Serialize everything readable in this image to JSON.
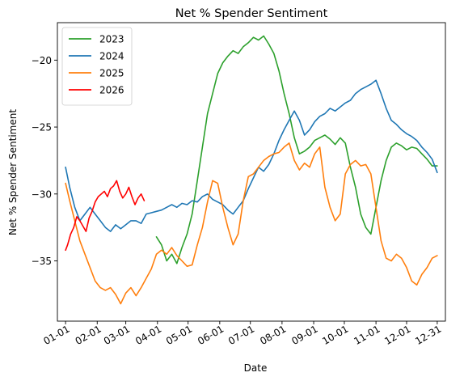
{
  "chart_data": {
    "type": "line",
    "title": "Net % Spender Sentiment",
    "xlabel": "Date",
    "ylabel": "Net % Spender Sentiment",
    "x_tick_labels": [
      "01-01",
      "02-01",
      "03-01",
      "04-01",
      "05-01",
      "06-01",
      "07-01",
      "08-01",
      "09-01",
      "10-01",
      "11-01",
      "12-01",
      "12-31"
    ],
    "x_tick_days": [
      1,
      32,
      60,
      91,
      121,
      152,
      182,
      213,
      244,
      274,
      305,
      335,
      365
    ],
    "xlim": [
      -7,
      373
    ],
    "ylim": [
      -39.5,
      -17.2
    ],
    "y_ticks": [
      -35,
      -30,
      -25,
      -20
    ],
    "y_tick_labels": [
      "−35",
      "−30",
      "−25",
      "−20"
    ],
    "grid": false,
    "legend_position": "top-left",
    "series": [
      {
        "name": "2023",
        "color": "#2ca02c",
        "x": [
          90,
          95,
          100,
          105,
          110,
          115,
          120,
          125,
          130,
          135,
          140,
          145,
          150,
          155,
          160,
          165,
          170,
          175,
          180,
          185,
          190,
          195,
          200,
          205,
          210,
          215,
          220,
          225,
          230,
          235,
          240,
          245,
          250,
          255,
          260,
          265,
          270,
          275,
          280,
          285,
          290,
          295,
          300,
          305,
          310,
          315,
          320,
          325,
          330,
          335,
          340,
          345,
          350,
          355,
          360,
          365
        ],
        "y": [
          -33.2,
          -33.8,
          -35.0,
          -34.5,
          -35.2,
          -34.0,
          -33.0,
          -31.5,
          -29.0,
          -26.5,
          -24.0,
          -22.5,
          -21.0,
          -20.2,
          -19.7,
          -19.3,
          -19.5,
          -19.0,
          -18.7,
          -18.3,
          -18.5,
          -18.2,
          -18.8,
          -19.5,
          -20.8,
          -22.5,
          -24.0,
          -25.8,
          -27.0,
          -26.8,
          -26.5,
          -26.0,
          -25.8,
          -25.6,
          -25.9,
          -26.3,
          -25.8,
          -26.2,
          -28.0,
          -29.5,
          -31.5,
          -32.5,
          -33.0,
          -31.0,
          -29.0,
          -27.5,
          -26.5,
          -26.2,
          -26.4,
          -26.7,
          -26.5,
          -26.6,
          -27.0,
          -27.4,
          -27.9,
          -27.9
        ]
      },
      {
        "name": "2024",
        "color": "#1f77b4",
        "x": [
          1,
          5,
          10,
          15,
          20,
          25,
          30,
          35,
          40,
          45,
          50,
          55,
          60,
          65,
          70,
          75,
          80,
          85,
          90,
          95,
          100,
          105,
          110,
          115,
          120,
          125,
          130,
          135,
          140,
          145,
          150,
          155,
          160,
          165,
          170,
          175,
          180,
          185,
          190,
          195,
          200,
          205,
          210,
          215,
          220,
          225,
          230,
          235,
          240,
          245,
          250,
          255,
          260,
          265,
          270,
          275,
          280,
          285,
          290,
          295,
          300,
          305,
          310,
          315,
          320,
          325,
          330,
          335,
          340,
          345,
          350,
          355,
          360,
          365
        ],
        "y": [
          -28.0,
          -29.5,
          -31.0,
          -32.0,
          -31.5,
          -31.0,
          -31.5,
          -32.0,
          -32.5,
          -32.8,
          -32.3,
          -32.6,
          -32.3,
          -32.0,
          -32.0,
          -32.2,
          -31.5,
          -31.4,
          -31.3,
          -31.2,
          -31.0,
          -30.8,
          -31.0,
          -30.7,
          -30.8,
          -30.5,
          -30.6,
          -30.2,
          -30.0,
          -30.4,
          -30.6,
          -30.8,
          -31.2,
          -31.5,
          -31.0,
          -30.5,
          -29.6,
          -28.8,
          -28.0,
          -28.3,
          -27.8,
          -27.0,
          -26.0,
          -25.2,
          -24.5,
          -23.8,
          -24.5,
          -25.6,
          -25.2,
          -24.6,
          -24.2,
          -24.0,
          -23.6,
          -23.8,
          -23.5,
          -23.2,
          -23.0,
          -22.5,
          -22.2,
          -22.0,
          -21.8,
          -21.5,
          -22.5,
          -23.6,
          -24.5,
          -24.8,
          -25.2,
          -25.5,
          -25.7,
          -26.0,
          -26.5,
          -26.9,
          -27.4,
          -28.4
        ]
      },
      {
        "name": "2025",
        "color": "#ff7f0e",
        "x": [
          1,
          5,
          10,
          15,
          20,
          25,
          30,
          35,
          40,
          45,
          50,
          55,
          60,
          65,
          70,
          75,
          80,
          85,
          90,
          95,
          100,
          105,
          110,
          115,
          120,
          125,
          130,
          135,
          140,
          145,
          150,
          155,
          160,
          165,
          170,
          175,
          180,
          185,
          190,
          195,
          200,
          205,
          210,
          215,
          220,
          225,
          230,
          235,
          240,
          245,
          250,
          255,
          260,
          265,
          270,
          275,
          280,
          285,
          290,
          295,
          300,
          305,
          310,
          315,
          320,
          325,
          330,
          335,
          340,
          345,
          350,
          355,
          360,
          365
        ],
        "y": [
          -29.2,
          -30.5,
          -32.0,
          -33.5,
          -34.5,
          -35.5,
          -36.5,
          -37.0,
          -37.2,
          -37.0,
          -37.5,
          -38.2,
          -37.4,
          -37.0,
          -37.6,
          -37.0,
          -36.3,
          -35.6,
          -34.5,
          -34.2,
          -34.5,
          -34.0,
          -34.6,
          -35.0,
          -35.4,
          -35.3,
          -33.8,
          -32.5,
          -30.6,
          -29.0,
          -29.2,
          -31.0,
          -32.5,
          -33.8,
          -33.0,
          -30.5,
          -28.7,
          -28.5,
          -28.0,
          -27.5,
          -27.2,
          -27.0,
          -26.9,
          -26.5,
          -26.2,
          -27.5,
          -28.2,
          -27.7,
          -28.0,
          -27.0,
          -26.5,
          -29.5,
          -31.0,
          -32.0,
          -31.5,
          -28.5,
          -27.8,
          -27.5,
          -27.9,
          -27.8,
          -28.5,
          -31.0,
          -33.5,
          -34.8,
          -35.0,
          -34.5,
          -34.8,
          -35.5,
          -36.5,
          -36.8,
          -36.0,
          -35.5,
          -34.8,
          -34.6
        ]
      },
      {
        "name": "2026",
        "color": "#ff0000",
        "x": [
          1,
          3,
          6,
          9,
          12,
          15,
          18,
          21,
          24,
          27,
          30,
          33,
          36,
          39,
          42,
          45,
          48,
          51,
          54,
          57,
          60,
          63,
          66,
          69,
          72,
          75,
          78
        ],
        "y": [
          -34.2,
          -33.8,
          -33.0,
          -32.5,
          -31.7,
          -32.0,
          -32.4,
          -32.8,
          -31.8,
          -31.3,
          -30.6,
          -30.2,
          -30.0,
          -29.8,
          -30.2,
          -29.6,
          -29.4,
          -29.0,
          -29.8,
          -30.3,
          -30.0,
          -29.5,
          -30.2,
          -30.8,
          -30.3,
          -30.0,
          -30.5
        ]
      }
    ]
  }
}
